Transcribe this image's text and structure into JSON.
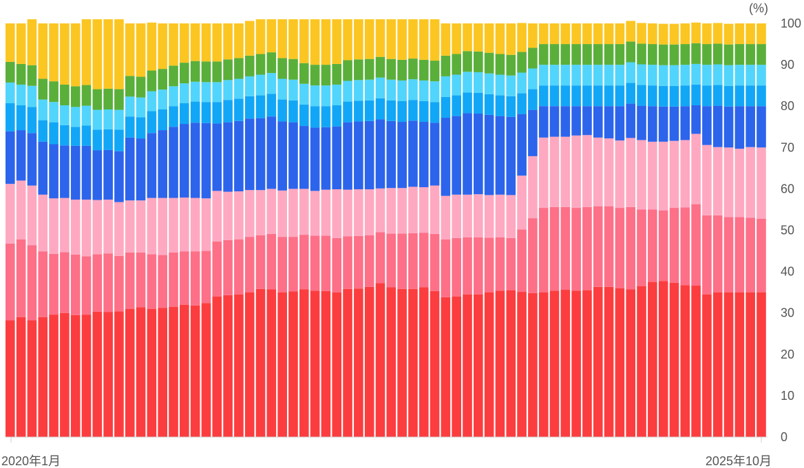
{
  "chart_data": {
    "type": "bar",
    "stacked": true,
    "x_first_label": "2020年1月",
    "x_last_label": "2025年10月",
    "y_unit_label": "(%)",
    "ylim": [
      0,
      100
    ],
    "y_ticks": [
      0,
      10,
      20,
      30,
      40,
      50,
      60,
      70,
      80,
      90,
      100
    ],
    "legend": "none",
    "grid": false,
    "categories": [
      "2020-01",
      "2020-02",
      "2020-03",
      "2020-04",
      "2020-05",
      "2020-06",
      "2020-07",
      "2020-08",
      "2020-09",
      "2020-10",
      "2020-11",
      "2020-12",
      "2021-01",
      "2021-02",
      "2021-03",
      "2021-04",
      "2021-05",
      "2021-06",
      "2021-07",
      "2021-08",
      "2021-09",
      "2021-10",
      "2021-11",
      "2021-12",
      "2022-01",
      "2022-02",
      "2022-03",
      "2022-04",
      "2022-05",
      "2022-06",
      "2022-07",
      "2022-08",
      "2022-09",
      "2022-10",
      "2022-11",
      "2022-12",
      "2023-01",
      "2023-02",
      "2023-03",
      "2023-04",
      "2023-05",
      "2023-06",
      "2023-07",
      "2023-08",
      "2023-09",
      "2023-10",
      "2023-11",
      "2023-12",
      "2024-01",
      "2024-02",
      "2024-03",
      "2024-04",
      "2024-05",
      "2024-06",
      "2024-07",
      "2024-08",
      "2024-09",
      "2024-10",
      "2024-11",
      "2024-12",
      "2025-01",
      "2025-02",
      "2025-03",
      "2025-04",
      "2025-05",
      "2025-06",
      "2025-07",
      "2025-08",
      "2025-09",
      "2025-10"
    ],
    "series": [
      {
        "color": "#fc3d3f",
        "values": [
          28.2,
          29.0,
          28.2,
          29.0,
          29.6,
          30.0,
          29.5,
          29.6,
          30.3,
          30.2,
          30.4,
          31.0,
          31.4,
          31.0,
          31.2,
          31.5,
          32.0,
          31.8,
          32.4,
          34.0,
          34.3,
          34.5,
          35.0,
          35.8,
          35.7,
          35.0,
          35.2,
          35.7,
          35.4,
          35.3,
          35.0,
          35.8,
          35.9,
          36.3,
          37.2,
          36.2,
          35.8,
          35.8,
          36.2,
          35.3,
          33.8,
          34.0,
          34.5,
          34.5,
          35.0,
          35.4,
          35.5,
          35.1,
          34.8,
          35.0,
          35.4,
          35.6,
          35.4,
          35.5,
          36.3,
          36.3,
          36.0,
          35.7,
          36.5,
          37.5,
          37.7,
          37.3,
          36.7,
          36.6,
          34.5,
          35.0,
          35.0,
          35.0,
          35.0,
          35.0
        ]
      },
      {
        "color": "#fd7088",
        "values": [
          18.6,
          18.8,
          18.2,
          15.9,
          14.7,
          14.7,
          14.6,
          14.1,
          13.9,
          14.2,
          13.4,
          13.6,
          13.2,
          13.2,
          12.8,
          13.1,
          12.9,
          13.1,
          12.6,
          13.3,
          13.3,
          13.3,
          13.4,
          13.0,
          13.4,
          13.4,
          13.2,
          13.2,
          13.3,
          13.4,
          13.1,
          12.7,
          12.7,
          12.5,
          12.3,
          13.0,
          13.4,
          13.5,
          13.2,
          13.8,
          14.0,
          14.1,
          13.8,
          13.8,
          13.2,
          12.9,
          12.6,
          15.1,
          18.1,
          20.4,
          20.2,
          20.0,
          20.0,
          20.1,
          19.5,
          19.5,
          19.4,
          19.9,
          18.5,
          17.5,
          17.1,
          18.1,
          18.8,
          19.7,
          19.1,
          18.6,
          18.2,
          18.2,
          18.0,
          17.8
        ]
      },
      {
        "color": "#fea9c1",
        "values": [
          14.4,
          14.2,
          14.4,
          13.7,
          13.4,
          13.1,
          13.3,
          13.7,
          13.1,
          13.0,
          13.0,
          12.6,
          12.6,
          13.6,
          13.8,
          13.2,
          13.0,
          12.9,
          12.7,
          12.2,
          11.7,
          11.6,
          11.3,
          10.9,
          10.9,
          11.2,
          11.6,
          11.1,
          10.8,
          11.1,
          11.8,
          11.3,
          11.3,
          11.1,
          10.6,
          11.0,
          11.0,
          11.2,
          11.0,
          11.7,
          10.5,
          10.5,
          10.3,
          10.4,
          10.3,
          10.3,
          10.4,
          13.0,
          15.0,
          17.0,
          17.0,
          17.0,
          17.5,
          17.4,
          16.6,
          16.4,
          16.3,
          16.7,
          16.8,
          16.4,
          16.6,
          16.2,
          16.3,
          17.0,
          17.0,
          16.5,
          16.8,
          16.5,
          17.1,
          17.2
        ]
      },
      {
        "color": "#2d64ec",
        "values": [
          12.7,
          12.2,
          12.7,
          12.8,
          13.1,
          12.7,
          13.0,
          13.0,
          12.0,
          12.0,
          12.3,
          15.2,
          15.0,
          15.7,
          16.4,
          17.2,
          17.8,
          18.2,
          18.2,
          16.3,
          16.8,
          17.0,
          17.3,
          17.4,
          17.5,
          16.7,
          16.1,
          15.2,
          15.3,
          15.1,
          15.2,
          16.3,
          16.4,
          16.5,
          16.7,
          16.2,
          16.0,
          16.0,
          15.8,
          15.2,
          18.9,
          19.0,
          19.7,
          19.5,
          19.4,
          19.0,
          18.9,
          14.9,
          11.2,
          7.6,
          7.4,
          7.4,
          7.1,
          7.0,
          7.6,
          7.8,
          8.3,
          8.3,
          8.3,
          8.6,
          8.5,
          8.3,
          8.2,
          6.9,
          9.4,
          10.0,
          9.9,
          10.3,
          9.9,
          10.0
        ]
      },
      {
        "color": "#12a7f6",
        "values": [
          6.8,
          6.0,
          6.3,
          5.2,
          5.3,
          4.9,
          4.6,
          4.9,
          5.0,
          5.0,
          5.2,
          5.1,
          5.1,
          5.3,
          5.0,
          5.0,
          5.0,
          5.1,
          5.1,
          5.2,
          5.4,
          5.4,
          5.4,
          5.5,
          5.5,
          5.3,
          5.3,
          5.2,
          5.2,
          5.1,
          5.1,
          5.0,
          5.0,
          5.0,
          5.1,
          5.0,
          5.0,
          5.0,
          5.0,
          5.0,
          5.0,
          5.0,
          5.0,
          5.0,
          5.0,
          5.0,
          5.0,
          5.0,
          5.0,
          5.0,
          5.0,
          5.0,
          5.0,
          5.0,
          5.0,
          5.0,
          5.0,
          5.0,
          5.0,
          5.0,
          5.0,
          5.0,
          5.0,
          5.0,
          5.0,
          5.0,
          5.0,
          5.0,
          5.0,
          5.0
        ]
      },
      {
        "color": "#52d5fc",
        "values": [
          5.0,
          5.0,
          5.1,
          5.0,
          4.9,
          4.8,
          4.8,
          4.8,
          4.8,
          4.8,
          4.8,
          4.8,
          4.8,
          4.8,
          4.8,
          4.8,
          4.8,
          4.8,
          4.8,
          4.8,
          4.8,
          4.8,
          4.8,
          5.0,
          5.0,
          5.0,
          5.0,
          5.0,
          5.0,
          5.0,
          5.0,
          5.0,
          5.0,
          5.0,
          5.0,
          5.0,
          5.0,
          5.0,
          5.0,
          5.0,
          5.0,
          5.0,
          5.0,
          5.0,
          5.0,
          5.0,
          5.0,
          5.0,
          5.0,
          5.0,
          5.0,
          5.0,
          5.0,
          5.0,
          5.0,
          5.0,
          5.0,
          5.0,
          5.0,
          5.0,
          5.0,
          5.0,
          5.0,
          5.0,
          5.0,
          5.0,
          5.0,
          5.0,
          5.0,
          5.0
        ]
      },
      {
        "color": "#5aaf3a",
        "values": [
          5.0,
          5.0,
          5.0,
          5.0,
          5.0,
          5.0,
          5.0,
          5.0,
          5.0,
          5.0,
          5.0,
          5.0,
          5.0,
          5.0,
          5.0,
          5.0,
          5.0,
          5.0,
          5.0,
          5.0,
          5.0,
          5.0,
          5.0,
          5.0,
          5.0,
          5.0,
          5.0,
          5.0,
          5.0,
          5.0,
          5.0,
          5.0,
          5.0,
          5.0,
          5.0,
          5.0,
          5.0,
          5.0,
          5.0,
          5.0,
          5.0,
          5.0,
          5.0,
          5.0,
          5.0,
          5.0,
          5.0,
          5.0,
          5.0,
          5.0,
          5.0,
          5.0,
          5.0,
          5.0,
          5.0,
          5.0,
          5.0,
          5.0,
          5.0,
          5.0,
          5.0,
          5.0,
          5.0,
          5.0,
          5.0,
          5.0,
          5.0,
          5.0,
          5.0,
          5.0
        ]
      },
      {
        "color": "#fbc622",
        "values": [
          9.3,
          9.8,
          11.1,
          13.4,
          14.0,
          14.8,
          15.2,
          15.9,
          16.9,
          16.8,
          16.9,
          12.7,
          12.9,
          11.6,
          11.0,
          10.2,
          9.5,
          9.1,
          9.2,
          9.2,
          8.7,
          8.4,
          8.4,
          8.4,
          8.0,
          9.4,
          9.6,
          10.6,
          11.0,
          11.0,
          10.8,
          9.9,
          9.7,
          9.6,
          9.1,
          9.6,
          9.8,
          9.5,
          9.8,
          10.0,
          7.8,
          7.4,
          6.7,
          6.8,
          7.1,
          7.4,
          7.6,
          7.0,
          5.9,
          5.0,
          5.0,
          5.0,
          5.0,
          5.0,
          5.0,
          5.0,
          5.0,
          5.0,
          5.0,
          5.0,
          5.0,
          5.0,
          5.0,
          5.0,
          5.0,
          5.0,
          5.0,
          5.0,
          5.0,
          5.0
        ]
      }
    ]
  }
}
